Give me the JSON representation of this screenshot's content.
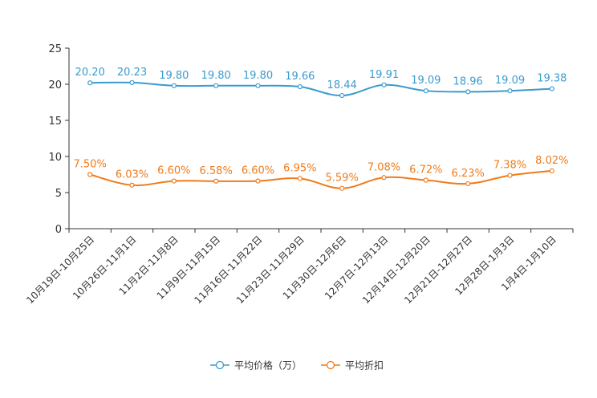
{
  "chart_data": {
    "type": "line",
    "title": "",
    "xlabel": "",
    "ylabel": "",
    "ylim": [
      0,
      25
    ],
    "yticks": [
      0,
      5,
      10,
      15,
      20,
      25
    ],
    "grid": false,
    "legend_position": "bottom-center",
    "categories": [
      "10月19日-10月25日",
      "10月26日-11月1日",
      "11月2日-11月8日",
      "11月9日-11月15日",
      "11月16日-11月22日",
      "11月23日-11月29日",
      "11月30日-12月6日",
      "12月7日-12月13日",
      "12月14日-12月20日",
      "12月21日-12月27日",
      "12月28日-1月3日",
      "1月4日-1月10日"
    ],
    "series": [
      {
        "name": "平均价格（万）",
        "color": "#3a9bd0",
        "values": [
          20.2,
          20.23,
          19.8,
          19.8,
          19.8,
          19.66,
          18.44,
          19.91,
          19.09,
          18.96,
          19.09,
          19.38
        ],
        "labels": [
          "20.20",
          "20.23",
          "19.80",
          "19.80",
          "19.80",
          "19.66",
          "18.44",
          "19.91",
          "19.09",
          "18.96",
          "19.09",
          "19.38"
        ]
      },
      {
        "name": "平均折扣",
        "color": "#f07b1a",
        "values": [
          7.5,
          6.03,
          6.6,
          6.58,
          6.6,
          6.95,
          5.59,
          7.08,
          6.72,
          6.23,
          7.38,
          8.02
        ],
        "labels": [
          "7.50%",
          "6.03%",
          "6.60%",
          "6.58%",
          "6.60%",
          "6.95%",
          "5.59%",
          "7.08%",
          "6.72%",
          "6.23%",
          "7.38%",
          "8.02%"
        ]
      }
    ]
  }
}
